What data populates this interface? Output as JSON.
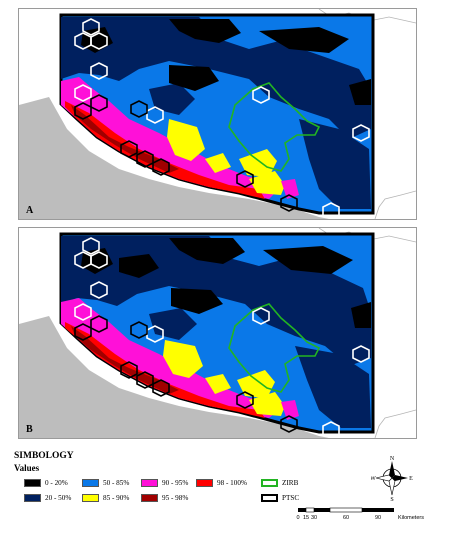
{
  "panels": [
    {
      "label": "A"
    },
    {
      "label": "B"
    }
  ],
  "legend": {
    "title": "SIMBOLOGY",
    "subtitle": "Values",
    "items": [
      {
        "label": "0 - 20%",
        "color": "#000000"
      },
      {
        "label": "20 - 50%",
        "color": "#00205f"
      },
      {
        "label": "50 - 85%",
        "color": "#0a78e8"
      },
      {
        "label": "85 - 90%",
        "color": "#ffff00"
      },
      {
        "label": "90 - 95%",
        "color": "#ff10d8"
      },
      {
        "label": "95 - 98%",
        "color": "#a00000"
      },
      {
        "label": "98 - 100%",
        "color": "#ff0000"
      },
      {
        "label": "ZIRB",
        "color": "#22b422"
      },
      {
        "label": "PTSC",
        "color": "#000000"
      }
    ]
  },
  "compass": {
    "n": "N",
    "s": "S",
    "e": "E",
    "w": "W",
    "icon": "compass-rose-icon"
  },
  "scale": {
    "ticks": [
      "0",
      "15",
      "30",
      "60",
      "90"
    ],
    "unit": "Kilometers"
  },
  "colors": {
    "land_gray": "#bdbdbd",
    "ocean_white": "#ffffff",
    "hex_white": "#ffffff",
    "hex_black": "#000000",
    "zirb_green": "#22b422"
  }
}
